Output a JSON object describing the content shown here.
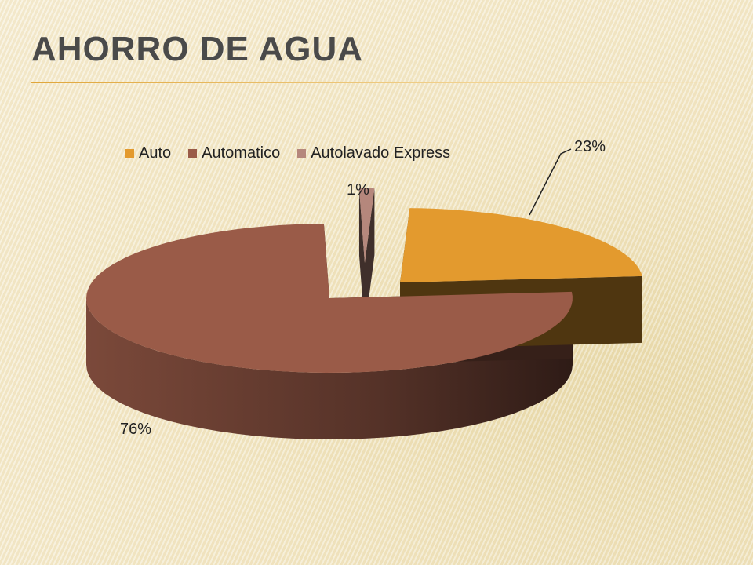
{
  "slide": {
    "title": "AHORRO DE AGUA"
  },
  "chart_data": {
    "type": "pie",
    "style": "3d-exploded",
    "categories": [
      "Auto",
      "Automatico",
      "Autolavado Express"
    ],
    "values": [
      23,
      76,
      1
    ],
    "data_labels": [
      "23%",
      "76%",
      "1%"
    ],
    "colors": [
      "#E39A2E",
      "#9A5B48",
      "#B5877C"
    ],
    "legend_position": "top"
  }
}
